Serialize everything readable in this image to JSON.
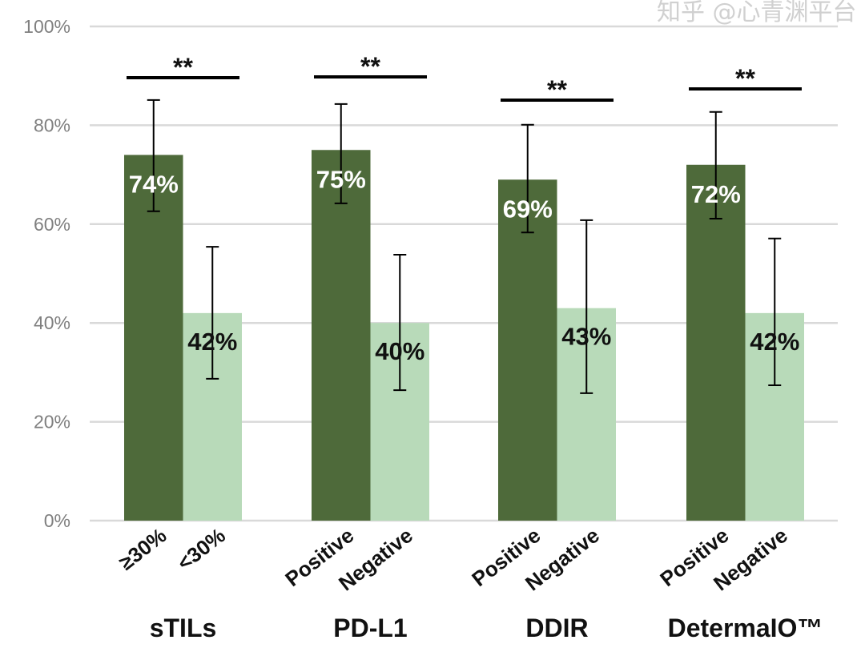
{
  "chart_data": {
    "type": "bar",
    "title": "",
    "xlabel": "",
    "ylabel": "",
    "ylim": [
      0,
      100
    ],
    "yticks": [
      "0%",
      "20%",
      "40%",
      "60%",
      "80%",
      "100%"
    ],
    "grid": true,
    "colors": {
      "positive": "#4e6a3a",
      "negative": "#b8dab9",
      "grid": "#d9d9d9",
      "tick": "#7f7f7f"
    },
    "groups": [
      {
        "name": "sTILs",
        "significance": "**",
        "bars": [
          {
            "category": "≥30%",
            "value": 74,
            "label": "74%",
            "err_low": 62.6,
            "err_high": 85.1
          },
          {
            "category": "<30%",
            "value": 42,
            "label": "42%",
            "err_low": 28.7,
            "err_high": 55.4
          }
        ]
      },
      {
        "name": "PD-L1",
        "significance": "**",
        "bars": [
          {
            "category": "Positive",
            "value": 75,
            "label": "75%",
            "err_low": 64.2,
            "err_high": 84.3
          },
          {
            "category": "Negative",
            "value": 40,
            "label": "40%",
            "err_low": 26.4,
            "err_high": 53.8
          }
        ]
      },
      {
        "name": "DDIR",
        "significance": "**",
        "bars": [
          {
            "category": "Positive",
            "value": 69,
            "label": "69%",
            "err_low": 58.3,
            "err_high": 80.1
          },
          {
            "category": "Negative",
            "value": 43,
            "label": "43%",
            "err_low": 25.8,
            "err_high": 60.8
          }
        ]
      },
      {
        "name": "DetermaIO™",
        "significance": "**",
        "bars": [
          {
            "category": "Positive",
            "value": 72,
            "label": "72%",
            "err_low": 61.1,
            "err_high": 82.7
          },
          {
            "category": "Negative",
            "value": 42,
            "label": "42%",
            "err_low": 27.4,
            "err_high": 57.1
          }
        ]
      }
    ]
  },
  "watermark": "知乎 @心青渊平台"
}
